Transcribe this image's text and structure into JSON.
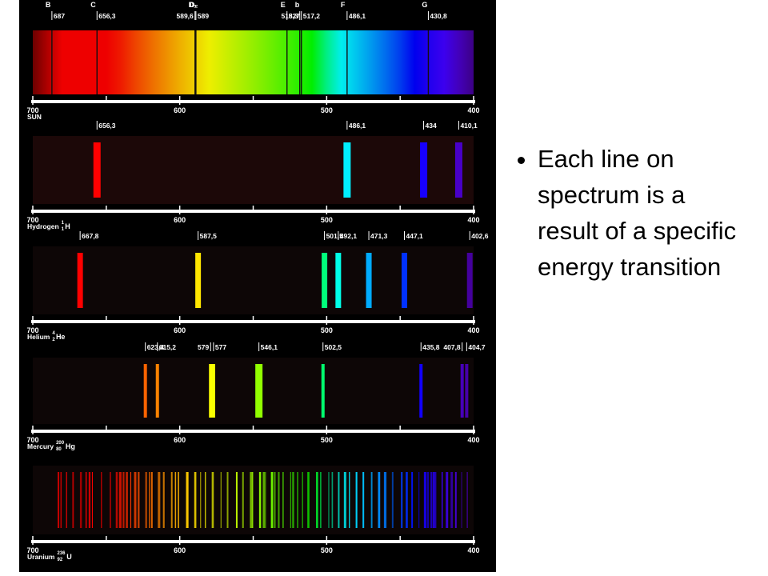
{
  "spectra": [
    {
      "name": "SUN",
      "lines": [
        {
          "letter": "B",
          "value": 687,
          "label": "687"
        },
        {
          "letter": "C",
          "value": 656.3,
          "label": "656,3"
        },
        {
          "letter": "D₁",
          "value": 589.6,
          "label": "589,6"
        },
        {
          "letter": "D₂",
          "value": 589,
          "label": "589"
        },
        {
          "letter": "E",
          "value": 527,
          "label": "527"
        },
        {
          "value": 518.3,
          "label": "518,3"
        },
        {
          "letter": "b",
          "value": 517.2,
          "label": "517,2"
        },
        {
          "letter": "F",
          "value": 486.1,
          "label": "486,1"
        },
        {
          "letter": "G",
          "value": 430.8,
          "label": "430,8"
        }
      ]
    },
    {
      "name": "Hydrogen",
      "symbol": "H",
      "mass_number": 1,
      "atomic_number": 1,
      "lines": [
        {
          "value": 656.3,
          "label": "656,3"
        },
        {
          "value": 486.1,
          "label": "486,1"
        },
        {
          "value": 434,
          "label": "434"
        },
        {
          "value": 410.1,
          "label": "410,1"
        }
      ]
    },
    {
      "name": "Helium",
      "symbol": "He",
      "mass_number": 4,
      "atomic_number": 2,
      "lines": [
        {
          "value": 667.8,
          "label": "667,8"
        },
        {
          "value": 587.5,
          "label": "587,5"
        },
        {
          "value": 501.5,
          "label": "501,5"
        },
        {
          "value": 492.1,
          "label": "492,1"
        },
        {
          "value": 471.3,
          "label": "471,3"
        },
        {
          "value": 447.1,
          "label": "447,1"
        },
        {
          "value": 402.6,
          "label": "402,6"
        }
      ]
    },
    {
      "name": "Mercury",
      "symbol": "Hg",
      "mass_number": 200,
      "atomic_number": 80,
      "lines": [
        {
          "value": 623.4,
          "label": "623,4"
        },
        {
          "value": 615.2,
          "label": "615,2"
        },
        {
          "value": 579,
          "label": "579"
        },
        {
          "value": 577,
          "label": "577"
        },
        {
          "value": 546.1,
          "label": "546,1"
        },
        {
          "value": 502.5,
          "label": "502,5"
        },
        {
          "value": 435.8,
          "label": "435,8"
        },
        {
          "value": 407.8,
          "label": "407,8"
        },
        {
          "value": 404.7,
          "label": "404,7"
        }
      ]
    },
    {
      "name": "Uranium",
      "symbol": "U",
      "mass_number": 236,
      "atomic_number": 92,
      "lines": []
    }
  ],
  "axis": {
    "ticks": [
      700,
      600,
      500,
      400
    ]
  },
  "bullet": "Each line on spectrum is a result of a specific energy transition"
}
